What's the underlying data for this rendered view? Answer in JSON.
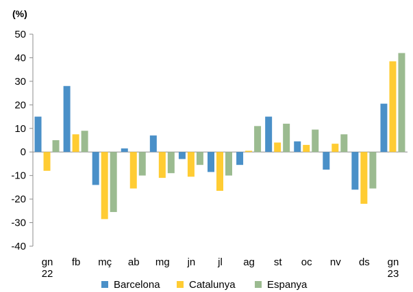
{
  "chart_data": {
    "type": "bar",
    "unit_label": "(%)",
    "title": "",
    "xlabel": "",
    "ylabel": "",
    "ylim": [
      -40,
      50
    ],
    "yticks": [
      50,
      40,
      30,
      20,
      10,
      0,
      -10,
      -20,
      -30,
      -40
    ],
    "grid": false,
    "legend_position": "bottom",
    "categories": [
      [
        "gn",
        "22"
      ],
      [
        "fb"
      ],
      [
        "mç"
      ],
      [
        "ab"
      ],
      [
        "mg"
      ],
      [
        "jn"
      ],
      [
        "jl"
      ],
      [
        "ag"
      ],
      [
        "st"
      ],
      [
        "oc"
      ],
      [
        "nv"
      ],
      [
        "ds"
      ],
      [
        "gn",
        "23"
      ]
    ],
    "series": [
      {
        "name": "Barcelona",
        "color": "#4a90c8",
        "values": [
          15.0,
          28.0,
          -14.0,
          1.5,
          7.0,
          -3.0,
          -8.5,
          -5.5,
          15.0,
          4.5,
          -7.5,
          -16.0,
          20.5
        ]
      },
      {
        "name": "Catalunya",
        "color": "#ffcc33",
        "values": [
          -8.0,
          7.5,
          -28.5,
          -15.5,
          -11.0,
          -10.5,
          -16.5,
          0.5,
          4.0,
          3.0,
          3.5,
          -22.0,
          38.5
        ]
      },
      {
        "name": "Espanya",
        "color": "#9bbb90",
        "values": [
          5.0,
          9.0,
          -25.5,
          -10.0,
          -9.0,
          -5.5,
          -10.0,
          11.0,
          12.0,
          9.5,
          7.5,
          -15.5,
          42.0
        ]
      }
    ]
  }
}
